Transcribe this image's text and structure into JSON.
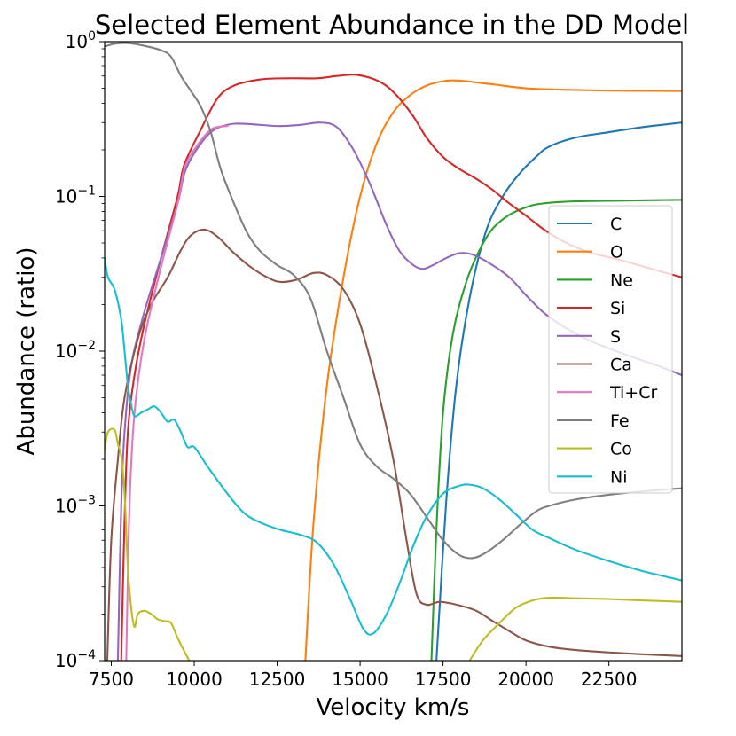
{
  "chart_data": {
    "type": "line",
    "title": "Selected Element Abundance in the DD Model",
    "xlabel": "Velocity km/s",
    "ylabel": "Abundance (ratio)",
    "yscale": "log",
    "xlim": [
      7300,
      24700
    ],
    "ylim": [
      0.0001,
      1
    ],
    "x_ticks": [
      7500,
      10000,
      12500,
      15000,
      17500,
      20000,
      22500
    ],
    "x_tick_labels": [
      "7500",
      "10000",
      "12500",
      "15000",
      "17500",
      "20000",
      "22500"
    ],
    "y_ticks": [
      0.0001,
      0.001,
      0.01,
      0.1,
      1
    ],
    "y_tick_labels": [
      {
        "base": "10",
        "exp": "−4"
      },
      {
        "base": "10",
        "exp": "−3"
      },
      {
        "base": "10",
        "exp": "−2"
      },
      {
        "base": "10",
        "exp": "−1"
      },
      {
        "base": "10",
        "exp": "0"
      }
    ],
    "legend_position": "center-right",
    "series": [
      {
        "name": "C",
        "color": "#1f77b4",
        "points": [
          [
            17300,
            0.0001
          ],
          [
            17600,
            0.0011
          ],
          [
            17900,
            0.006
          ],
          [
            18300,
            0.022
          ],
          [
            18800,
            0.06
          ],
          [
            19300,
            0.1
          ],
          [
            19800,
            0.14
          ],
          [
            20300,
            0.18
          ],
          [
            20700,
            0.21
          ],
          [
            21500,
            0.24
          ],
          [
            22500,
            0.26
          ],
          [
            23500,
            0.28
          ],
          [
            24700,
            0.3
          ]
        ]
      },
      {
        "name": "O",
        "color": "#ff7f0e",
        "points": [
          [
            13350,
            0.0001
          ],
          [
            13600,
            0.0008
          ],
          [
            14000,
            0.006
          ],
          [
            14500,
            0.03
          ],
          [
            15000,
            0.1
          ],
          [
            15500,
            0.22
          ],
          [
            16000,
            0.35
          ],
          [
            16500,
            0.45
          ],
          [
            17000,
            0.52
          ],
          [
            17500,
            0.555
          ],
          [
            18000,
            0.56
          ],
          [
            19000,
            0.53
          ],
          [
            20000,
            0.5
          ],
          [
            21000,
            0.49
          ],
          [
            22000,
            0.485
          ],
          [
            23000,
            0.482
          ],
          [
            24700,
            0.48
          ]
        ]
      },
      {
        "name": "Ne",
        "color": "#2ca02c",
        "points": [
          [
            17150,
            0.0001
          ],
          [
            17300,
            0.0007
          ],
          [
            17500,
            0.004
          ],
          [
            17800,
            0.013
          ],
          [
            18200,
            0.028
          ],
          [
            18600,
            0.045
          ],
          [
            19000,
            0.062
          ],
          [
            19500,
            0.076
          ],
          [
            20000,
            0.085
          ],
          [
            20500,
            0.09
          ],
          [
            21500,
            0.093
          ],
          [
            23000,
            0.094
          ],
          [
            24700,
            0.095
          ]
        ]
      },
      {
        "name": "Si",
        "color": "#d62728",
        "points": [
          [
            7800,
            0.0001
          ],
          [
            7900,
            0.0008
          ],
          [
            8000,
            0.003
          ],
          [
            8200,
            0.007
          ],
          [
            8500,
            0.015
          ],
          [
            9000,
            0.04
          ],
          [
            9500,
            0.1
          ],
          [
            9700,
            0.16
          ],
          [
            10200,
            0.27
          ],
          [
            10700,
            0.43
          ],
          [
            11200,
            0.52
          ],
          [
            12000,
            0.57
          ],
          [
            12800,
            0.58
          ],
          [
            13700,
            0.58
          ],
          [
            14300,
            0.6
          ],
          [
            14900,
            0.61
          ],
          [
            15600,
            0.55
          ],
          [
            16100,
            0.45
          ],
          [
            16600,
            0.33
          ],
          [
            17000,
            0.24
          ],
          [
            17500,
            0.18
          ],
          [
            18000,
            0.15
          ],
          [
            18500,
            0.13
          ],
          [
            19000,
            0.11
          ],
          [
            19500,
            0.09
          ],
          [
            20000,
            0.075
          ],
          [
            20500,
            0.062
          ],
          [
            21000,
            0.053
          ],
          [
            21500,
            0.047
          ],
          [
            22000,
            0.043
          ],
          [
            23000,
            0.038
          ],
          [
            24000,
            0.033
          ],
          [
            24700,
            0.03
          ]
        ]
      },
      {
        "name": "S",
        "color": "#9467bd",
        "points": [
          [
            7700,
            0.0001
          ],
          [
            7800,
            0.001
          ],
          [
            7900,
            0.003
          ],
          [
            8100,
            0.008
          ],
          [
            8500,
            0.018
          ],
          [
            9000,
            0.04
          ],
          [
            9500,
            0.09
          ],
          [
            9700,
            0.14
          ],
          [
            10000,
            0.19
          ],
          [
            10500,
            0.26
          ],
          [
            11000,
            0.29
          ],
          [
            11500,
            0.295
          ],
          [
            12500,
            0.285
          ],
          [
            13200,
            0.29
          ],
          [
            13800,
            0.3
          ],
          [
            14300,
            0.28
          ],
          [
            14800,
            0.2
          ],
          [
            15300,
            0.12
          ],
          [
            15800,
            0.065
          ],
          [
            16200,
            0.044
          ],
          [
            16600,
            0.036
          ],
          [
            16900,
            0.034
          ],
          [
            17200,
            0.036
          ],
          [
            17600,
            0.04
          ],
          [
            18000,
            0.043
          ],
          [
            18400,
            0.042
          ],
          [
            18900,
            0.037
          ],
          [
            19500,
            0.03
          ],
          [
            20000,
            0.023
          ],
          [
            20500,
            0.018
          ],
          [
            21000,
            0.015
          ],
          [
            21500,
            0.013
          ],
          [
            22000,
            0.0115
          ],
          [
            23000,
            0.0095
          ],
          [
            24000,
            0.008
          ],
          [
            24700,
            0.007
          ]
        ]
      },
      {
        "name": "Ca",
        "color": "#8c564b",
        "points": [
          [
            7380,
            0.0001
          ],
          [
            7500,
            0.0006
          ],
          [
            7700,
            0.002
          ],
          [
            7900,
            0.005
          ],
          [
            8300,
            0.012
          ],
          [
            8700,
            0.02
          ],
          [
            9200,
            0.03
          ],
          [
            9600,
            0.045
          ],
          [
            9900,
            0.056
          ],
          [
            10300,
            0.061
          ],
          [
            10700,
            0.055
          ],
          [
            11200,
            0.043
          ],
          [
            11700,
            0.035
          ],
          [
            12200,
            0.03
          ],
          [
            12600,
            0.028
          ],
          [
            13100,
            0.029
          ],
          [
            13600,
            0.032
          ],
          [
            14000,
            0.031
          ],
          [
            14500,
            0.025
          ],
          [
            15000,
            0.015
          ],
          [
            15500,
            0.006
          ],
          [
            16000,
            0.002
          ],
          [
            16400,
            0.0006
          ],
          [
            16700,
            0.00027
          ],
          [
            17000,
            0.00023
          ],
          [
            17400,
            0.00024
          ],
          [
            17900,
            0.00023
          ],
          [
            18500,
            0.00021
          ],
          [
            19000,
            0.00018
          ],
          [
            19500,
            0.000155
          ],
          [
            20000,
            0.000135
          ],
          [
            20700,
            0.000123
          ],
          [
            21500,
            0.000117
          ],
          [
            22500,
            0.000113
          ],
          [
            23500,
            0.00011
          ],
          [
            24700,
            0.000107
          ]
        ]
      },
      {
        "name": "Ti+Cr",
        "color": "#e377c2",
        "points": [
          [
            7950,
            0.0001
          ],
          [
            8050,
            0.001
          ],
          [
            8200,
            0.004
          ],
          [
            8500,
            0.012
          ],
          [
            9000,
            0.035
          ],
          [
            9500,
            0.09
          ],
          [
            9700,
            0.15
          ],
          [
            10000,
            0.2
          ],
          [
            10500,
            0.27
          ],
          [
            11000,
            0.285
          ]
        ]
      },
      {
        "name": "Fe",
        "color": "#7f7f7f",
        "points": [
          [
            7300,
            0.93
          ],
          [
            7600,
            0.97
          ],
          [
            8000,
            0.98
          ],
          [
            8500,
            0.94
          ],
          [
            9000,
            0.88
          ],
          [
            9300,
            0.8
          ],
          [
            9600,
            0.6
          ],
          [
            9900,
            0.48
          ],
          [
            10200,
            0.38
          ],
          [
            10500,
            0.26
          ],
          [
            10800,
            0.15
          ],
          [
            11200,
            0.09
          ],
          [
            11600,
            0.058
          ],
          [
            12000,
            0.044
          ],
          [
            12500,
            0.036
          ],
          [
            13000,
            0.031
          ],
          [
            13500,
            0.022
          ],
          [
            14000,
            0.01
          ],
          [
            14500,
            0.005
          ],
          [
            15000,
            0.0025
          ],
          [
            15500,
            0.0018
          ],
          [
            16000,
            0.0015
          ],
          [
            16500,
            0.0012
          ],
          [
            17000,
            0.00085
          ],
          [
            17500,
            0.0006
          ],
          [
            18000,
            0.00048
          ],
          [
            18400,
            0.00046
          ],
          [
            18800,
            0.0005
          ],
          [
            19300,
            0.0006
          ],
          [
            19800,
            0.00075
          ],
          [
            20300,
            0.00092
          ],
          [
            20700,
            0.001
          ],
          [
            21500,
            0.0011
          ],
          [
            22500,
            0.00118
          ],
          [
            23500,
            0.00124
          ],
          [
            24700,
            0.0013
          ]
        ]
      },
      {
        "name": "Co",
        "color": "#bcbd22",
        "points": [
          [
            7300,
            0.0023
          ],
          [
            7400,
            0.003
          ],
          [
            7600,
            0.0031
          ],
          [
            7700,
            0.0025
          ],
          [
            7800,
            0.0021
          ],
          [
            7900,
            0.0012
          ],
          [
            8000,
            0.0004
          ],
          [
            8100,
            0.00022
          ],
          [
            8200,
            0.000165
          ],
          [
            8300,
            0.0002
          ],
          [
            8500,
            0.00021
          ],
          [
            8700,
            0.0002
          ],
          [
            8900,
            0.000185
          ],
          [
            9100,
            0.00018
          ],
          [
            9300,
            0.000175
          ],
          [
            9500,
            0.00014
          ],
          [
            9700,
            0.000115
          ],
          [
            9850,
            0.0001
          ],
          null,
          [
            18300,
            0.0001
          ],
          [
            18700,
            0.000135
          ],
          [
            19200,
            0.000175
          ],
          [
            19700,
            0.00022
          ],
          [
            20200,
            0.000245
          ],
          [
            20700,
            0.000255
          ],
          [
            21500,
            0.000253
          ],
          [
            22500,
            0.00025
          ],
          [
            23500,
            0.000245
          ],
          [
            24700,
            0.00024
          ]
        ]
      },
      {
        "name": "Ni",
        "color": "#17becf",
        "points": [
          [
            7300,
            0.04
          ],
          [
            7400,
            0.03
          ],
          [
            7600,
            0.025
          ],
          [
            7800,
            0.016
          ],
          [
            7900,
            0.01
          ],
          [
            8000,
            0.006
          ],
          [
            8100,
            0.0045
          ],
          [
            8200,
            0.0038
          ],
          [
            8400,
            0.004
          ],
          [
            8600,
            0.0042
          ],
          [
            8800,
            0.0044
          ],
          [
            9000,
            0.004
          ],
          [
            9200,
            0.0035
          ],
          [
            9400,
            0.0036
          ],
          [
            9600,
            0.003
          ],
          [
            9800,
            0.0024
          ],
          [
            10000,
            0.0024
          ],
          [
            10400,
            0.0018
          ],
          [
            11000,
            0.0012
          ],
          [
            11500,
            0.0009
          ],
          [
            12000,
            0.00078
          ],
          [
            12600,
            0.0007
          ],
          [
            13200,
            0.00065
          ],
          [
            13700,
            0.00058
          ],
          [
            14200,
            0.00042
          ],
          [
            14700,
            0.00025
          ],
          [
            15100,
            0.00016
          ],
          [
            15400,
            0.00015
          ],
          [
            15800,
            0.0002
          ],
          [
            16200,
            0.00032
          ],
          [
            16600,
            0.00055
          ],
          [
            17000,
            0.00085
          ],
          [
            17500,
            0.0012
          ],
          [
            18000,
            0.00135
          ],
          [
            18300,
            0.00137
          ],
          [
            18700,
            0.0013
          ],
          [
            19200,
            0.0011
          ],
          [
            19700,
            0.00088
          ],
          [
            20200,
            0.0007
          ],
          [
            20700,
            0.00062
          ],
          [
            21500,
            0.00052
          ],
          [
            22500,
            0.00044
          ],
          [
            23500,
            0.00038
          ],
          [
            24700,
            0.00033
          ]
        ]
      }
    ]
  }
}
